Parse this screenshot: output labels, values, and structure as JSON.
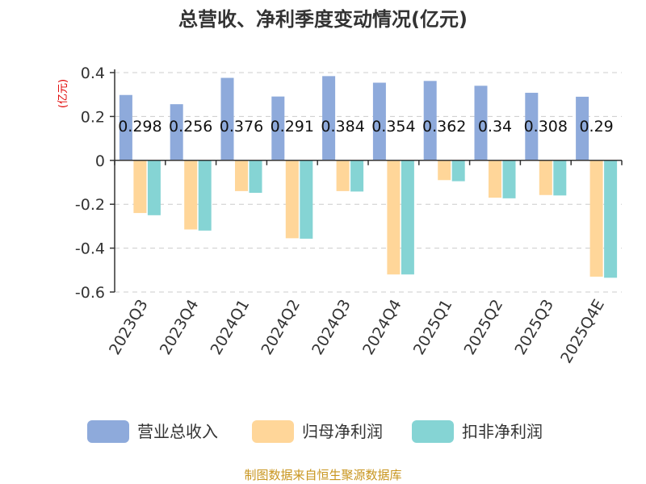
{
  "chart_data": {
    "type": "bar",
    "title": "总营收、净利季度变动情况(亿元)",
    "ylabel": "(亿元)",
    "xlabel": "",
    "ylim": [
      -0.6,
      0.4
    ],
    "yticks": [
      0.4,
      0.2,
      0,
      -0.2,
      -0.4,
      -0.6
    ],
    "ytick_labels": [
      "0.4",
      "0.2",
      "0",
      "-0.2",
      "-0.4",
      "-0.6"
    ],
    "grid": true,
    "legend_position": "bottom",
    "categories": [
      "2023Q3",
      "2023Q4",
      "2024Q1",
      "2024Q2",
      "2024Q3",
      "2024Q4",
      "2025Q1",
      "2025Q2",
      "2025Q3",
      "2025Q4E"
    ],
    "series": [
      {
        "name": "营业总收入",
        "color": "#8eaadb",
        "values": [
          0.298,
          0.256,
          0.376,
          0.291,
          0.384,
          0.354,
          0.362,
          0.34,
          0.308,
          0.29
        ],
        "labels": [
          "0.298",
          "0.256",
          "0.376",
          "0.291",
          "0.384",
          "0.354",
          "0.362",
          "0.34",
          "0.308",
          "0.29"
        ]
      },
      {
        "name": "归母净利润",
        "color": "#ffd699",
        "values": [
          -0.24,
          -0.315,
          -0.14,
          -0.355,
          -0.14,
          -0.52,
          -0.09,
          -0.17,
          -0.158,
          -0.53
        ]
      },
      {
        "name": "扣非净利润",
        "color": "#85d4d4",
        "values": [
          -0.25,
          -0.32,
          -0.148,
          -0.357,
          -0.142,
          -0.52,
          -0.095,
          -0.173,
          -0.16,
          -0.535
        ]
      }
    ]
  },
  "source": "制图数据来自恒生聚源数据库"
}
